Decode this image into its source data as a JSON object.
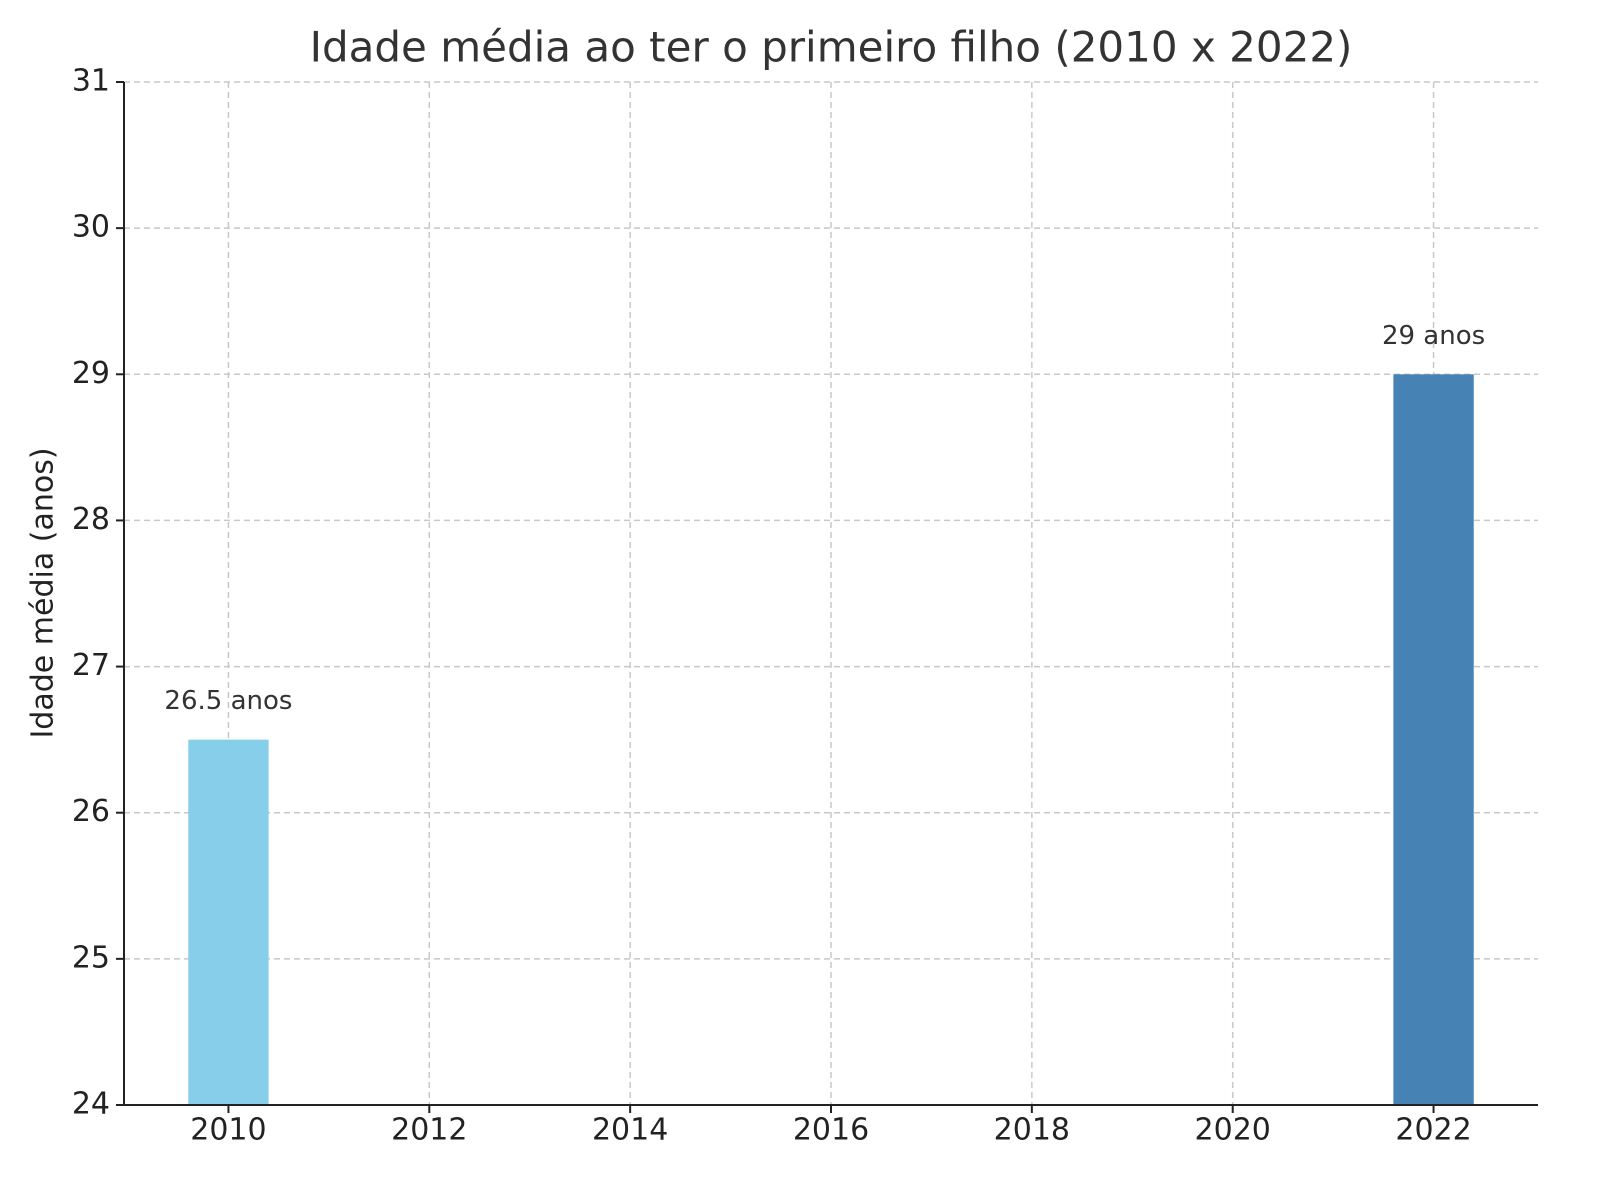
{
  "chart_data": {
    "type": "bar",
    "title": "Idade média ao ter o primeiro filho (2010 x 2022)",
    "y_label": "Idade média (anos)",
    "x": [
      2010,
      2022
    ],
    "values": [
      26.5,
      29
    ],
    "value_labels": [
      "26.5 anos",
      "29 anos"
    ],
    "colors": [
      "#87ceeb",
      "#4682b4"
    ],
    "xlim": [
      2008.96,
      2023.04
    ],
    "xticks": [
      2010,
      2012,
      2014,
      2016,
      2018,
      2020,
      2022
    ],
    "ylim": [
      24,
      31
    ],
    "yticks": [
      24,
      25,
      26,
      27,
      28,
      29,
      30,
      31
    ],
    "grid": true
  }
}
